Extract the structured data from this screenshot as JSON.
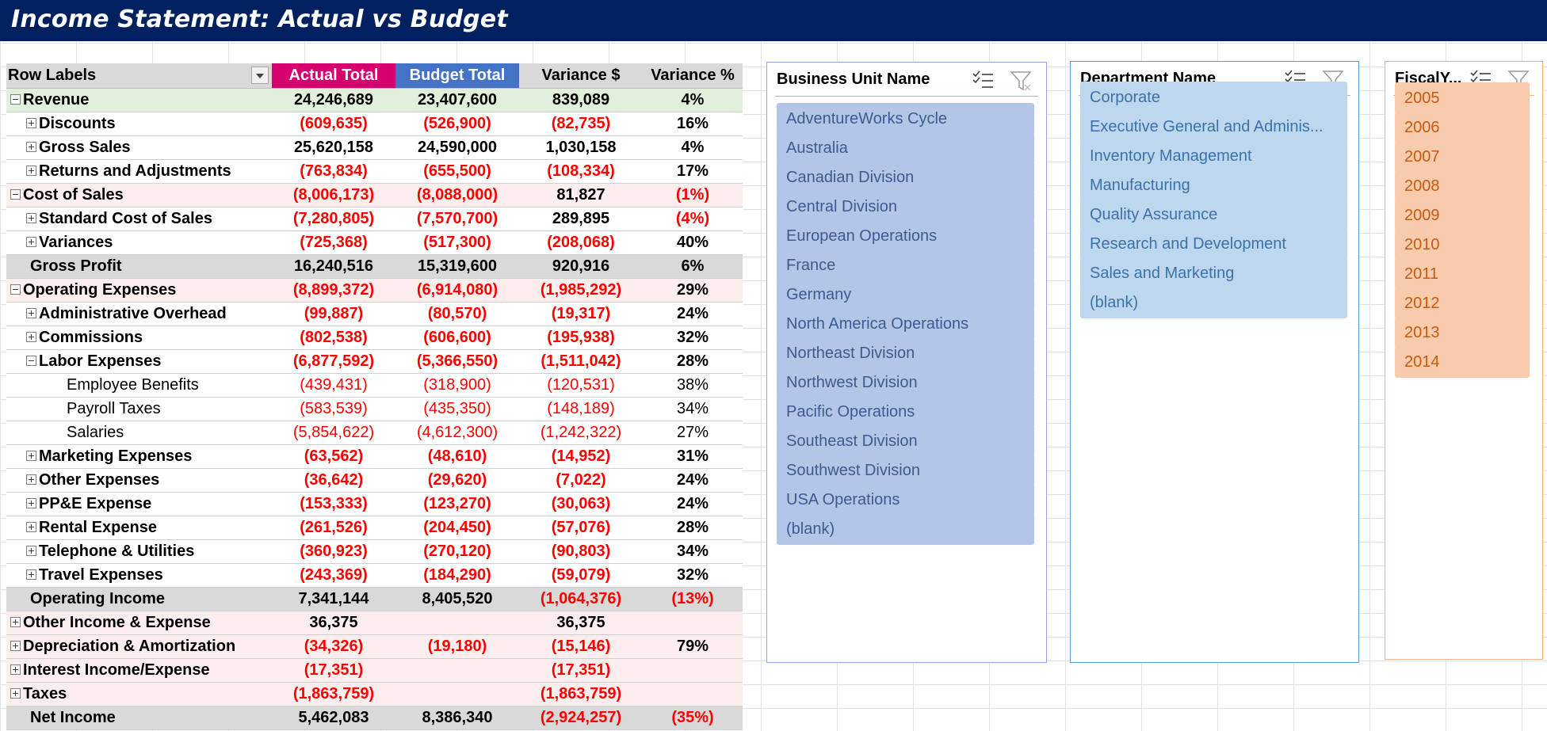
{
  "title": "Income Statement: Actual vs Budget",
  "pivot": {
    "headers": [
      "Row Labels",
      "Actual Total",
      "Budget Total",
      "Variance $",
      "Variance %"
    ],
    "rows": [
      {
        "label": "Revenue",
        "toggle": "minus",
        "level": 0,
        "bold": true,
        "style": "rev",
        "values": [
          "24,246,689",
          "23,407,600",
          "839,089",
          "4%"
        ]
      },
      {
        "label": "Discounts",
        "toggle": "plus",
        "level": 1,
        "bold": true,
        "values": [
          "(609,635)",
          "(526,900)",
          "(82,735)",
          "16%"
        ]
      },
      {
        "label": "Gross Sales",
        "toggle": "plus",
        "level": 1,
        "bold": true,
        "values": [
          "25,620,158",
          "24,590,000",
          "1,030,158",
          "4%"
        ]
      },
      {
        "label": "Returns and Adjustments",
        "toggle": "plus",
        "level": 1,
        "bold": true,
        "values": [
          "(763,834)",
          "(655,500)",
          "(108,334)",
          "17%"
        ]
      },
      {
        "label": "Cost of Sales",
        "toggle": "minus",
        "level": 0,
        "bold": true,
        "style": "pink",
        "values": [
          "(8,006,173)",
          "(8,088,000)",
          "81,827",
          "(1%)"
        ]
      },
      {
        "label": "Standard Cost of Sales",
        "toggle": "plus",
        "level": 1,
        "bold": true,
        "values": [
          "(7,280,805)",
          "(7,570,700)",
          "289,895",
          "(4%)"
        ]
      },
      {
        "label": "Variances",
        "toggle": "plus",
        "level": 1,
        "bold": true,
        "values": [
          "(725,368)",
          "(517,300)",
          "(208,068)",
          "40%"
        ]
      },
      {
        "label": "Gross Profit",
        "toggle": "none",
        "level": 0,
        "bold": true,
        "style": "grey",
        "values": [
          "16,240,516",
          "15,319,600",
          "920,916",
          "6%"
        ]
      },
      {
        "label": "Operating Expenses",
        "toggle": "minus",
        "level": 0,
        "bold": true,
        "style": "pink",
        "values": [
          "(8,899,372)",
          "(6,914,080)",
          "(1,985,292)",
          "29%"
        ]
      },
      {
        "label": "Administrative Overhead",
        "toggle": "plus",
        "level": 1,
        "bold": true,
        "values": [
          "(99,887)",
          "(80,570)",
          "(19,317)",
          "24%"
        ]
      },
      {
        "label": "Commissions",
        "toggle": "plus",
        "level": 1,
        "bold": true,
        "values": [
          "(802,538)",
          "(606,600)",
          "(195,938)",
          "32%"
        ]
      },
      {
        "label": "Labor Expenses",
        "toggle": "minus",
        "level": 1,
        "bold": true,
        "values": [
          "(6,877,592)",
          "(5,366,550)",
          "(1,511,042)",
          "28%"
        ]
      },
      {
        "label": "Employee Benefits",
        "toggle": "none",
        "level": 2,
        "bold": false,
        "values": [
          "(439,431)",
          "(318,900)",
          "(120,531)",
          "38%"
        ]
      },
      {
        "label": "Payroll Taxes",
        "toggle": "none",
        "level": 2,
        "bold": false,
        "values": [
          "(583,539)",
          "(435,350)",
          "(148,189)",
          "34%"
        ]
      },
      {
        "label": "Salaries",
        "toggle": "none",
        "level": 2,
        "bold": false,
        "values": [
          "(5,854,622)",
          "(4,612,300)",
          "(1,242,322)",
          "27%"
        ]
      },
      {
        "label": "Marketing Expenses",
        "toggle": "plus",
        "level": 1,
        "bold": true,
        "values": [
          "(63,562)",
          "(48,610)",
          "(14,952)",
          "31%"
        ]
      },
      {
        "label": "Other Expenses",
        "toggle": "plus",
        "level": 1,
        "bold": true,
        "values": [
          "(36,642)",
          "(29,620)",
          "(7,022)",
          "24%"
        ]
      },
      {
        "label": "PP&E Expense",
        "toggle": "plus",
        "level": 1,
        "bold": true,
        "values": [
          "(153,333)",
          "(123,270)",
          "(30,063)",
          "24%"
        ]
      },
      {
        "label": "Rental Expense",
        "toggle": "plus",
        "level": 1,
        "bold": true,
        "values": [
          "(261,526)",
          "(204,450)",
          "(57,076)",
          "28%"
        ]
      },
      {
        "label": "Telephone & Utilities",
        "toggle": "plus",
        "level": 1,
        "bold": true,
        "values": [
          "(360,923)",
          "(270,120)",
          "(90,803)",
          "34%"
        ]
      },
      {
        "label": "Travel Expenses",
        "toggle": "plus",
        "level": 1,
        "bold": true,
        "values": [
          "(243,369)",
          "(184,290)",
          "(59,079)",
          "32%"
        ]
      },
      {
        "label": "Operating Income",
        "toggle": "none",
        "level": 0,
        "bold": true,
        "style": "grey",
        "values": [
          "7,341,144",
          "8,405,520",
          "(1,064,376)",
          "(13%)"
        ]
      },
      {
        "label": "Other Income & Expense",
        "toggle": "plus",
        "level": 0,
        "bold": true,
        "style": "pink",
        "values": [
          "36,375",
          "",
          "36,375",
          ""
        ]
      },
      {
        "label": "Depreciation & Amortization",
        "toggle": "plus",
        "level": 0,
        "bold": true,
        "style": "pink",
        "values": [
          "(34,326)",
          "(19,180)",
          "(15,146)",
          "79%"
        ]
      },
      {
        "label": "Interest Income/Expense",
        "toggle": "plus",
        "level": 0,
        "bold": true,
        "style": "pink",
        "values": [
          "(17,351)",
          "",
          "(17,351)",
          ""
        ]
      },
      {
        "label": "Taxes",
        "toggle": "plus",
        "level": 0,
        "bold": true,
        "style": "pink",
        "values": [
          "(1,863,759)",
          "",
          "(1,863,759)",
          ""
        ]
      },
      {
        "label": "Net Income",
        "toggle": "none",
        "level": 0,
        "bold": true,
        "style": "grey",
        "values": [
          "5,462,083",
          "8,386,340",
          "(2,924,257)",
          "(35%)"
        ]
      }
    ]
  },
  "slicers": {
    "business_unit": {
      "header": "Business Unit Name",
      "items": [
        "AdventureWorks Cycle",
        "Australia",
        "Canadian Division",
        "Central Division",
        "European Operations",
        "France",
        "Germany",
        "North America Operations",
        "Northeast Division",
        "Northwest Division",
        "Pacific Operations",
        "Southeast Division",
        "Southwest Division",
        "USA Operations",
        "(blank)"
      ]
    },
    "department": {
      "header": "Department Name",
      "items": [
        "Corporate",
        "Executive General and Adminis...",
        "Inventory Management",
        "Manufacturing",
        "Quality Assurance",
        "Research and Development",
        "Sales and Marketing",
        "(blank)"
      ]
    },
    "fiscal_year": {
      "header": "FiscalY...",
      "items": [
        "2005",
        "2006",
        "2007",
        "2008",
        "2009",
        "2010",
        "2011",
        "2012",
        "2013",
        "2014"
      ]
    }
  },
  "colors": {
    "banner": "#002060",
    "actual_header": "#d6006f",
    "budget_header": "#4472c4",
    "negative": "#ff0000",
    "bu_item": "#b4c6e7",
    "dept_item": "#bdd7ee",
    "fy_item": "#f8cbad"
  }
}
